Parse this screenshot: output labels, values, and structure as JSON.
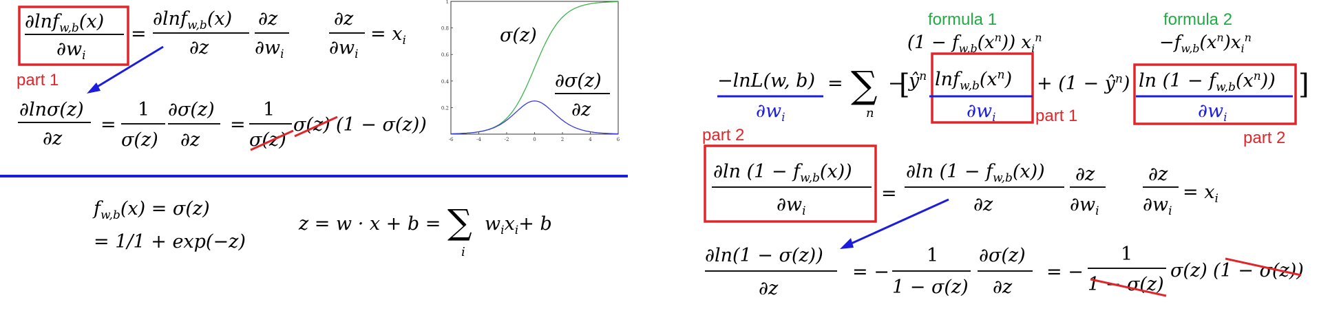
{
  "labels": {
    "part1": "part 1",
    "part2": "part 2",
    "formula1": "formula 1",
    "formula2": "formula 2"
  },
  "colors": {
    "red": "#e0262a",
    "blue": "#1c1cde",
    "green": "#22aa44",
    "curve_green": "#3cb44b",
    "curve_blue": "#3a3ae0"
  },
  "left": {
    "eq1": {
      "lhs_num": "∂lnf",
      "lhs_sub": "w,b",
      "lhs_arg": "(x)",
      "lhs_den": "∂w",
      "lhs_den_sub": "i",
      "eq": "=",
      "rhs1_num": "∂lnf",
      "rhs1_sub": "w,b",
      "rhs1_arg": "(x)",
      "rhs1_den": "∂z",
      "rhs2_num": "∂z",
      "rhs2_den": "∂w",
      "rhs2_den_sub": "i"
    },
    "eq2": {
      "num": "∂z",
      "den": "∂w",
      "den_sub": "i",
      "rhs": "= x",
      "rhs_sub": "i"
    },
    "eq3": {
      "lhs_num": "∂lnσ(z)",
      "lhs_den": "∂z",
      "eq1": "=",
      "f1_num": "1",
      "f1_den": "σ(z)",
      "f2_num": "∂σ(z)",
      "f2_den": "∂z",
      "eq2": "=",
      "f3_num": "1",
      "f3_den": "σ(z)",
      "tail": "σ(z)",
      "tail2": "(1 − σ(z))"
    },
    "eq4": {
      "line1": "f",
      "line1_sub": "w,b",
      "line1_rest": "(x) = σ(z)",
      "line2": "= 1/1 + exp(−z)"
    },
    "eq5": {
      "lhs": "z = w · x + b =",
      "sum": "∑",
      "sum_sub": "i",
      "rhs": "w",
      "rhs_sub1": "i",
      "rhs_x": "x",
      "rhs_sub2": "i",
      "rhs_end": "+ b"
    }
  },
  "chart_data": {
    "type": "line",
    "x": [
      -6,
      -5,
      -4,
      -3,
      -2,
      -1,
      0,
      1,
      2,
      3,
      4,
      5,
      6
    ],
    "series": [
      {
        "name": "σ(z)",
        "values": [
          0.0025,
          0.0067,
          0.018,
          0.047,
          0.119,
          0.269,
          0.5,
          0.731,
          0.881,
          0.953,
          0.982,
          0.9933,
          0.9975
        ]
      },
      {
        "name": "∂σ(z)/∂z",
        "values": [
          0.0025,
          0.0066,
          0.0177,
          0.0452,
          0.105,
          0.1966,
          0.25,
          0.1966,
          0.105,
          0.0452,
          0.0177,
          0.0066,
          0.0025
        ]
      }
    ],
    "xticks": [
      "-6",
      "-4",
      "-2",
      "0",
      "2",
      "4",
      "6"
    ],
    "yticks": [
      "0.2",
      "0.4",
      "0.6",
      "0.8",
      "1"
    ],
    "xlim": [
      -6,
      6
    ],
    "ylim": [
      0,
      1
    ],
    "labels": {
      "sigma": "σ(z)",
      "deriv_num": "∂σ(z)",
      "deriv_den": "∂z"
    }
  },
  "right": {
    "main": {
      "lhs_num": "−lnL(w, b)",
      "lhs_den": "∂w",
      "lhs_den_sub": "i",
      "eq": "=",
      "sum": "∑",
      "sum_sub": "n",
      "minus": "−",
      "bracket_open": "[",
      "yhat1": "ŷ",
      "yhat1_sup": "n",
      "t1_num": "lnf",
      "t1_sub": "w,b",
      "t1_arg": "(x",
      "t1_sup": "n",
      "t1_close": ")",
      "t1_den": "∂w",
      "t1_den_sub": "i",
      "plus": "+ (1 − ŷ",
      "plus_sup": "n",
      "plus_close": ")",
      "t2_num": "ln (1 − f",
      "t2_sub": "w,b",
      "t2_arg": "(x",
      "t2_sup": "n",
      "t2_close": "))",
      "t2_den": "∂w",
      "t2_den_sub": "i",
      "bracket_close": "]"
    },
    "formula1_text": {
      "a": "(1 − f",
      "sub": "w,b",
      "b": "(x",
      "sup": "n",
      "c": ")) x",
      "sub2": "i",
      "sup2": "n"
    },
    "formula2_text": {
      "a": "−f",
      "sub": "w,b",
      "b": "(x",
      "sup": "n",
      "c": ")x",
      "sub2": "i",
      "sup2": "n"
    },
    "eq2": {
      "lhs_num": "∂ln (1 − f",
      "lhs_sub": "w,b",
      "lhs_arg": "(x))",
      "lhs_den": "∂w",
      "lhs_den_sub": "i",
      "eq": "=",
      "rhs_num": "∂ln (1 − f",
      "rhs_sub": "w,b",
      "rhs_arg": "(x))",
      "rhs_den": "∂z",
      "r2_num": "∂z",
      "r2_den": "∂w",
      "r2_den_sub": "i",
      "r3_num": "∂z",
      "r3_den": "∂w",
      "r3_den_sub": "i",
      "r3_rhs": "= x",
      "r3_rhs_sub": "i"
    },
    "eq3": {
      "lhs_num": "∂ln(1 − σ(z))",
      "lhs_den": "∂z",
      "eq1": "= −",
      "f1_num": "1",
      "f1_den": "1 − σ(z)",
      "f2_num": "∂σ(z)",
      "f2_den": "∂z",
      "eq2": "= −",
      "f3_num": "1",
      "f3_den": "1 − σ(z)",
      "tail": "σ(z)",
      "tail2": "(1 − σ(z))"
    }
  }
}
